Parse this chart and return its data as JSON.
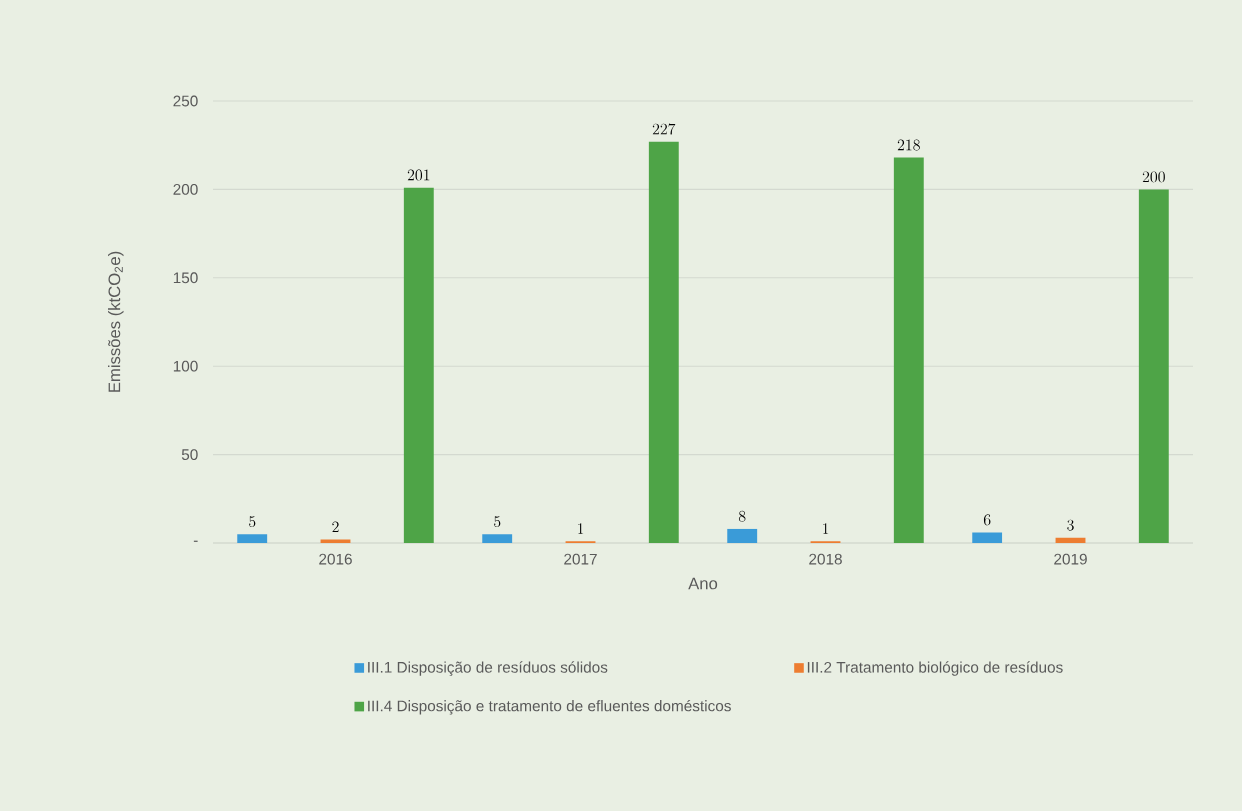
{
  "chart_data": {
    "type": "bar",
    "xlabel": "Ano",
    "ylabel": "Emissões (ktCO$_{2}$e)",
    "categories": [
      "2016",
      "2017",
      "2018",
      "2019"
    ],
    "series": [
      {
        "name": "III.1 Disposição de resíduos sólidos",
        "color": "#3a9bd8",
        "values": [
          5,
          5,
          8,
          6
        ]
      },
      {
        "name": "III.2 Tratamento biológico de resíduos",
        "color": "#ed7d31",
        "values": [
          2,
          1,
          1,
          3
        ]
      },
      {
        "name": "III.4 Disposição e tratamento de efluentes domésticos",
        "color": "#4ea447",
        "values": [
          201,
          227,
          218,
          200
        ]
      }
    ],
    "ylim": [
      0,
      250
    ],
    "yticks": [
      {
        "value": 0,
        "label": "-"
      },
      50,
      100,
      150,
      200,
      250
    ],
    "grid": "y",
    "legend": "bottom",
    "data_labels": true
  }
}
